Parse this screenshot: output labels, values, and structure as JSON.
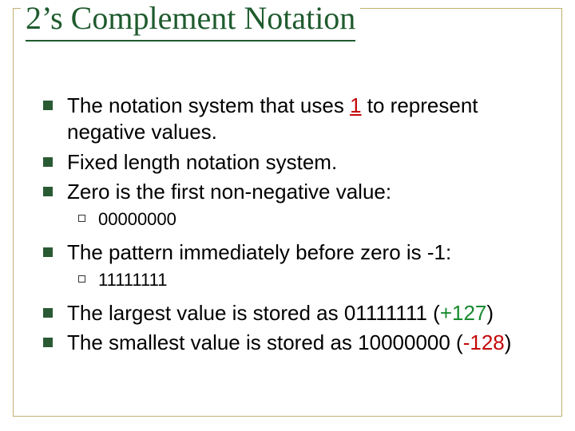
{
  "title": "2’s Complement Notation",
  "colors": {
    "title": "#1f5b2e",
    "bullet_fill": "#2a5a34",
    "text": "#000000",
    "frame_border": "#c0b070",
    "red": "#c40808",
    "green": "#188a2e",
    "background": "#ffffff"
  },
  "typography": {
    "title_family": "Times New Roman",
    "title_size_pt": 40,
    "body_family": "Arial",
    "body_size_pt": 26,
    "sub_size_pt": 22
  },
  "bullets": {
    "b1_pre": "The notation system that uses ",
    "b1_red": "1",
    "b1_post": " to represent negative values.",
    "b2": "Fixed length notation system.",
    "b3": "Zero is the first non-negative value:",
    "b3_sub": "00000000",
    "b4": "The pattern immediately before zero is -1:",
    "b4_sub": "11111111",
    "b5_pre": "The largest value is stored as 01111111 (",
    "b5_green": "+127",
    "b5_post": ")",
    "b6_pre": "The smallest value is stored as 10000000 (",
    "b6_red": "-128",
    "b6_post": ")"
  }
}
